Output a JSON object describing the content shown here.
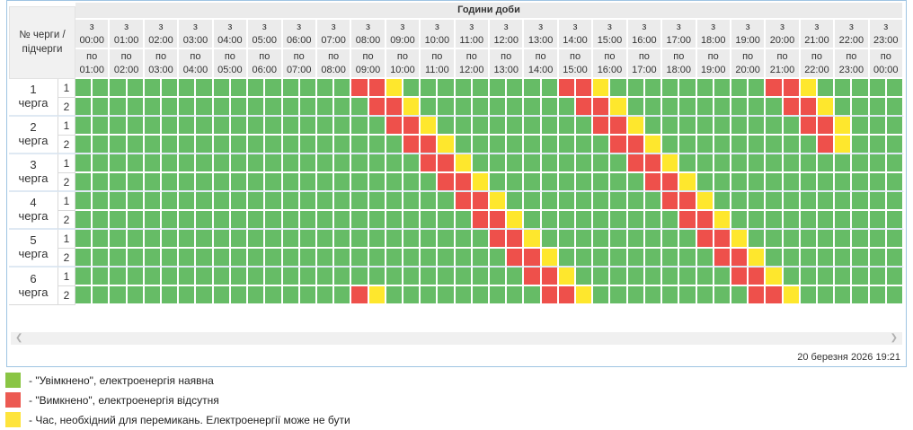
{
  "header": {
    "title": "Години доби",
    "corner_line1": "№ черги /",
    "corner_line2": "підчерги",
    "from_prefix": "з",
    "to_prefix": "по",
    "hours": [
      {
        "from": "00:00",
        "to": "01:00"
      },
      {
        "from": "01:00",
        "to": "02:00"
      },
      {
        "from": "02:00",
        "to": "03:00"
      },
      {
        "from": "03:00",
        "to": "04:00"
      },
      {
        "from": "04:00",
        "to": "05:00"
      },
      {
        "from": "05:00",
        "to": "06:00"
      },
      {
        "from": "06:00",
        "to": "07:00"
      },
      {
        "from": "07:00",
        "to": "08:00"
      },
      {
        "from": "08:00",
        "to": "09:00"
      },
      {
        "from": "09:00",
        "to": "10:00"
      },
      {
        "from": "10:00",
        "to": "11:00"
      },
      {
        "from": "11:00",
        "to": "12:00"
      },
      {
        "from": "12:00",
        "to": "13:00"
      },
      {
        "from": "13:00",
        "to": "14:00"
      },
      {
        "from": "14:00",
        "to": "15:00"
      },
      {
        "from": "15:00",
        "to": "16:00"
      },
      {
        "from": "16:00",
        "to": "17:00"
      },
      {
        "from": "17:00",
        "to": "18:00"
      },
      {
        "from": "18:00",
        "to": "19:00"
      },
      {
        "from": "19:00",
        "to": "20:00"
      },
      {
        "from": "20:00",
        "to": "21:00"
      },
      {
        "from": "21:00",
        "to": "22:00"
      },
      {
        "from": "22:00",
        "to": "23:00"
      },
      {
        "from": "23:00",
        "to": "00:00"
      }
    ]
  },
  "legend_cell_states": {
    "G": "on",
    "R": "off",
    "Y": "switching"
  },
  "queues": [
    {
      "number": "1",
      "word": "черга",
      "subqueues": [
        {
          "label": "1",
          "cells": "GGGGGGGGGGGGGGGGRRYGGGGGGGGGRRYGGGGGGGGGRRYGGGGG"
        },
        {
          "label": "2",
          "cells": "GGGGGGGGGGGGGGGGGRRYGGGGGGGGGRRYGGGGGGGGGRRYGGGG"
        }
      ]
    },
    {
      "number": "2",
      "word": "черга",
      "subqueues": [
        {
          "label": "1",
          "cells": "GGGGGGGGGGGGGGGGGGRRYGGGGGGGGGRRYGGGGGGGGGRRYGGG"
        },
        {
          "label": "2",
          "cells": "GGGGGGGGGGGGGGGGGGGRRYGGGGGGGGGRRYGGGGGGGGGRYGGG"
        }
      ]
    },
    {
      "number": "3",
      "word": "черга",
      "subqueues": [
        {
          "label": "1",
          "cells": "GGGGGGGGGGGGGGGGGGGGRRYGGGGGGGGGRRYGGGGGGGGGGGGG"
        },
        {
          "label": "2",
          "cells": "GGGGGGGGGGGGGGGGGGGGGRRYGGGGGGGGGRRYGGGGGGGGGGGG"
        }
      ]
    },
    {
      "number": "4",
      "word": "черга",
      "subqueues": [
        {
          "label": "1",
          "cells": "GGGGGGGGGGGGGGGGGGGGGGRRYGGGGGGGGGRRYGGGGGGGGGGG"
        },
        {
          "label": "2",
          "cells": "GGGGGGGGGGGGGGGGGGGGGGGRRYGGGGGGGGGRRYGGGGGGGGGG"
        }
      ]
    },
    {
      "number": "5",
      "word": "черга",
      "subqueues": [
        {
          "label": "1",
          "cells": "GGGGGGGGGGGGGGGGGGGGGGGGRRYGGGGGGGGGRRYGGGGGGGGG"
        },
        {
          "label": "2",
          "cells": "GGGGGGGGGGGGGGGGGGGGGGGGGRRYGGGGGGGGGRRYGGGGGGGG"
        }
      ]
    },
    {
      "number": "6",
      "word": "черга",
      "subqueues": [
        {
          "label": "1",
          "cells": "GGGGGGGGGGGGGGGGGGGGGGGGGGRRYGGGGGGGGGRRYGGGGGGG"
        },
        {
          "label": "2",
          "cells": "GGGGGGGGGGGGGGGGRYGGGGGGGGGRRYGGGGGGGGGRRYGGGGGG"
        }
      ]
    }
  ],
  "colors": {
    "cell_on": "#66bc66",
    "cell_off": "#ee504b",
    "cell_switching": "#fee72d",
    "legend_on": "#8ac544",
    "legend_off": "#ec5a52",
    "legend_switching": "#fee43c",
    "header_bg": "#ebebeb",
    "panel_border": "#9ec4e2"
  },
  "icons": {
    "scroll_left": "❮",
    "scroll_right": "❯"
  },
  "footer": {
    "timestamp": "20 березня 2026 19:21"
  },
  "legend": {
    "items": [
      {
        "state": "on",
        "text": "- \"Увімкнено\", електроенергія наявна"
      },
      {
        "state": "off",
        "text": "- \"Вимкнено\", електроенергія відсутня"
      },
      {
        "state": "switching",
        "text": "- Час, необхідний для перемикань. Електроенергії може не бути"
      }
    ]
  }
}
